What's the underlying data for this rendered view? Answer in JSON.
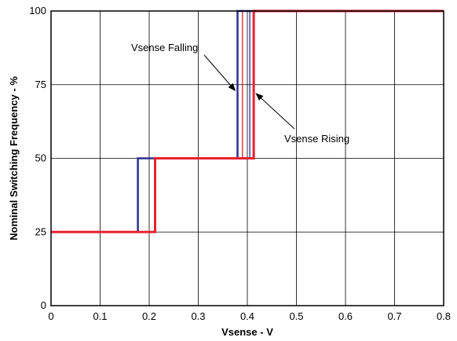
{
  "chart_data": {
    "type": "line",
    "title": "",
    "xlabel": "Vsense - V",
    "ylabel": "Nominal Switching Frequency - %",
    "xlim": [
      0,
      0.8
    ],
    "ylim": [
      0,
      100
    ],
    "x_ticks": [
      0,
      0.1,
      0.2,
      0.3,
      0.4,
      0.5,
      0.6,
      0.7,
      0.8
    ],
    "x_tick_labels": [
      "0",
      "0.1",
      "0.2",
      "0.3",
      "0.4",
      "0.5",
      "0.6",
      "0.7",
      "0.8"
    ],
    "y_ticks": [
      0,
      25,
      50,
      75,
      100
    ],
    "y_tick_labels": [
      "0",
      "25",
      "50",
      "75",
      "100"
    ],
    "grid": true,
    "legend": "none",
    "series": [
      {
        "name": "Vsense Falling",
        "color": "#2b2f8f",
        "x": [
          0,
          0.177,
          0.177,
          0.38,
          0.38,
          0.8
        ],
        "y": [
          25,
          25,
          50,
          50,
          100,
          100
        ]
      },
      {
        "name": "Vsense Rising",
        "color": "#e8202f",
        "x": [
          0,
          0.212,
          0.212,
          0.413,
          0.413,
          0.8
        ],
        "y": [
          25,
          25,
          50,
          50,
          100,
          100
        ]
      }
    ],
    "extra_vertical_lines": [
      {
        "color": "#e8202f",
        "x": 0.39,
        "y_from": 50,
        "y_to": 100
      },
      {
        "color": "#2b2f8f",
        "x": 0.405,
        "y_from": 50,
        "y_to": 100
      }
    ],
    "annotations": [
      {
        "text": "Vsense Falling",
        "target_series": 0,
        "point": [
          0.38,
          73
        ]
      },
      {
        "text": "Vsense Rising",
        "target_series": 1,
        "point": [
          0.413,
          72
        ]
      }
    ]
  }
}
